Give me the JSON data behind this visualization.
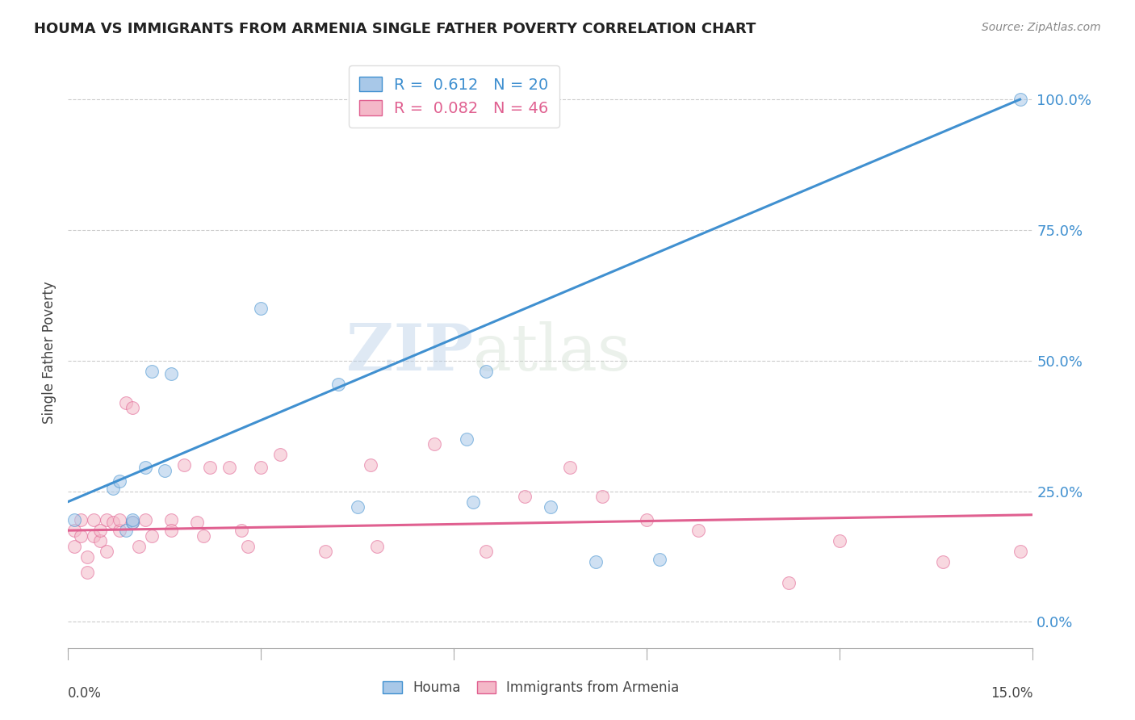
{
  "title": "HOUMA VS IMMIGRANTS FROM ARMENIA SINGLE FATHER POVERTY CORRELATION CHART",
  "source": "Source: ZipAtlas.com",
  "ylabel": "Single Father Poverty",
  "yticks": [
    "0.0%",
    "25.0%",
    "50.0%",
    "75.0%",
    "100.0%"
  ],
  "ytick_vals": [
    0,
    0.25,
    0.5,
    0.75,
    1.0
  ],
  "xlim": [
    0,
    0.15
  ],
  "ylim": [
    -0.05,
    1.08
  ],
  "houma_color": "#a8c8e8",
  "armenia_color": "#f4b8c8",
  "houma_line_color": "#4090d0",
  "armenia_line_color": "#e06090",
  "houma_R": 0.612,
  "houma_N": 20,
  "armenia_R": 0.082,
  "armenia_N": 46,
  "houma_x": [
    0.001,
    0.007,
    0.008,
    0.009,
    0.01,
    0.01,
    0.012,
    0.013,
    0.015,
    0.016,
    0.03,
    0.042,
    0.045,
    0.062,
    0.063,
    0.065,
    0.075,
    0.082,
    0.092,
    0.148
  ],
  "houma_y": [
    0.195,
    0.255,
    0.27,
    0.175,
    0.19,
    0.195,
    0.295,
    0.48,
    0.29,
    0.475,
    0.6,
    0.455,
    0.22,
    0.35,
    0.23,
    0.48,
    0.22,
    0.115,
    0.12,
    1.0
  ],
  "armenia_x": [
    0.001,
    0.001,
    0.002,
    0.002,
    0.003,
    0.003,
    0.004,
    0.004,
    0.005,
    0.005,
    0.006,
    0.006,
    0.007,
    0.008,
    0.008,
    0.009,
    0.01,
    0.01,
    0.011,
    0.012,
    0.013,
    0.016,
    0.016,
    0.018,
    0.02,
    0.021,
    0.022,
    0.025,
    0.027,
    0.028,
    0.03,
    0.033,
    0.04,
    0.047,
    0.048,
    0.057,
    0.065,
    0.071,
    0.078,
    0.083,
    0.09,
    0.098,
    0.112,
    0.12,
    0.136,
    0.148
  ],
  "armenia_y": [
    0.175,
    0.145,
    0.195,
    0.165,
    0.095,
    0.125,
    0.165,
    0.195,
    0.155,
    0.175,
    0.135,
    0.195,
    0.19,
    0.175,
    0.195,
    0.42,
    0.41,
    0.19,
    0.145,
    0.195,
    0.165,
    0.195,
    0.175,
    0.3,
    0.19,
    0.165,
    0.295,
    0.295,
    0.175,
    0.145,
    0.295,
    0.32,
    0.135,
    0.3,
    0.145,
    0.34,
    0.135,
    0.24,
    0.295,
    0.24,
    0.195,
    0.175,
    0.075,
    0.155,
    0.115,
    0.135
  ],
  "houma_line_x0": 0.0,
  "houma_line_y0": 0.23,
  "houma_line_x1": 0.148,
  "houma_line_y1": 1.0,
  "armenia_line_x0": 0.0,
  "armenia_line_y0": 0.175,
  "armenia_line_x1": 0.15,
  "armenia_line_y1": 0.205,
  "background_color": "#ffffff",
  "grid_color": "#cccccc",
  "watermark_text": "ZIPatlas",
  "marker_size": 130,
  "marker_alpha": 0.55
}
